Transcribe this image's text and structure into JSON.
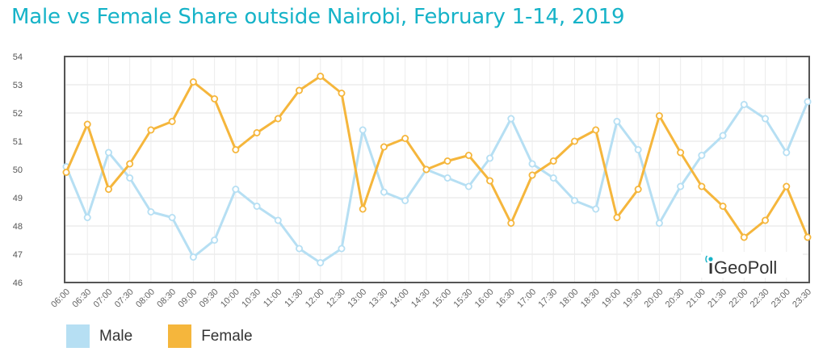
{
  "title": "Male vs Female Share outside Nairobi, February 1-14, 2019",
  "logo_text": "GeoPoll",
  "colors": {
    "male": "#b6dff3",
    "female": "#f5b63c",
    "title": "#16b3c8"
  },
  "chart_data": {
    "type": "line",
    "x": [
      "06:00",
      "06:30",
      "07:00",
      "07:30",
      "08:00",
      "08:30",
      "09:00",
      "09:30",
      "10:00",
      "10:30",
      "11:00",
      "11:30",
      "12:00",
      "12:30",
      "13:00",
      "13:30",
      "14:00",
      "14:30",
      "15:00",
      "15:30",
      "16:00",
      "16:30",
      "17:00",
      "17:30",
      "18:00",
      "18:30",
      "19:00",
      "19:30",
      "20:00",
      "20:30",
      "21:00",
      "21:30",
      "22:00",
      "22:30",
      "23:00",
      "23:30"
    ],
    "series": [
      {
        "name": "Male",
        "values": [
          50.1,
          48.3,
          50.6,
          49.7,
          48.5,
          48.3,
          46.9,
          47.5,
          49.3,
          48.7,
          48.2,
          47.2,
          46.7,
          47.2,
          51.4,
          49.2,
          48.9,
          50.0,
          49.7,
          49.4,
          50.4,
          51.8,
          50.2,
          49.7,
          48.9,
          48.6,
          51.7,
          50.7,
          48.1,
          49.4,
          50.5,
          51.2,
          52.3,
          51.8,
          50.6,
          52.4
        ]
      },
      {
        "name": "Female",
        "values": [
          49.9,
          51.6,
          49.3,
          50.2,
          51.4,
          51.7,
          53.1,
          52.5,
          50.7,
          51.3,
          51.8,
          52.8,
          53.3,
          52.7,
          48.6,
          50.8,
          51.1,
          50.0,
          50.3,
          50.5,
          49.6,
          48.1,
          49.8,
          50.3,
          51.0,
          51.4,
          48.3,
          49.3,
          51.9,
          50.6,
          49.4,
          48.7,
          47.6,
          48.2,
          49.4,
          47.6
        ]
      }
    ],
    "ylim": [
      46,
      54
    ],
    "yticks": [
      46,
      47,
      48,
      49,
      50,
      51,
      52,
      53,
      54
    ],
    "grid": true,
    "legend": "bottom-left"
  }
}
